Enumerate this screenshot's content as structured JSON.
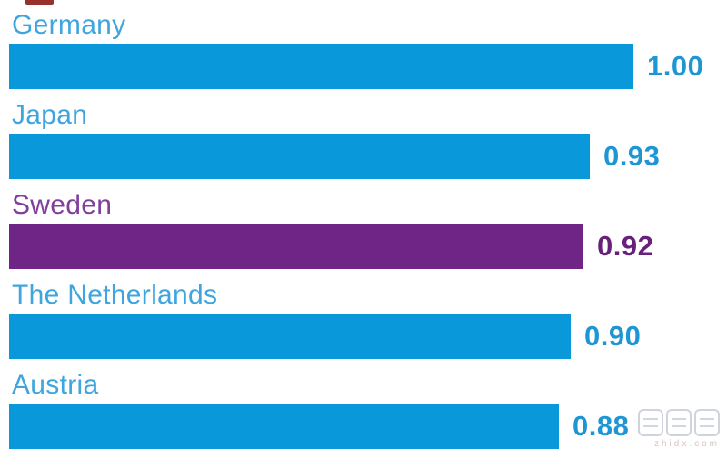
{
  "page": {
    "background": "#FFFFFF"
  },
  "chart_data": {
    "type": "bar",
    "orientation": "horizontal",
    "title": "",
    "xlabel": "",
    "ylabel": "",
    "categories": [
      "Germany",
      "Japan",
      "Sweden",
      "The Netherlands",
      "Austria"
    ],
    "values": [
      1.0,
      0.93,
      0.92,
      0.9,
      0.88
    ],
    "value_labels": [
      "1.00",
      "0.93",
      "0.92",
      "0.90",
      "0.88"
    ],
    "xlim": [
      0,
      1.0
    ],
    "grid": false,
    "legend": null,
    "highlight_index": 2,
    "bar_colors": [
      "#0999DB",
      "#0999DB",
      "#6F2586",
      "#0999DB",
      "#0999DB"
    ],
    "label_colors": [
      "#3FA5DE",
      "#3FA5DE",
      "#7F3F9B",
      "#3FA5DE",
      "#3FA5DE"
    ],
    "value_colors": [
      "#1E96D4",
      "#1E96D4",
      "#67217B",
      "#1E96D4",
      "#1E96D4"
    ]
  },
  "watermark": {
    "text": "智東西",
    "subtext": "zhidx.com"
  },
  "colors": {
    "bar_blue": "#0999DB",
    "bar_purple": "#6F2586",
    "label_blue": "#3FA5DE",
    "label_purple": "#7F3F9B",
    "value_blue": "#1E96D4",
    "value_purple": "#67217B",
    "artifact_red": "#8E1A15"
  }
}
